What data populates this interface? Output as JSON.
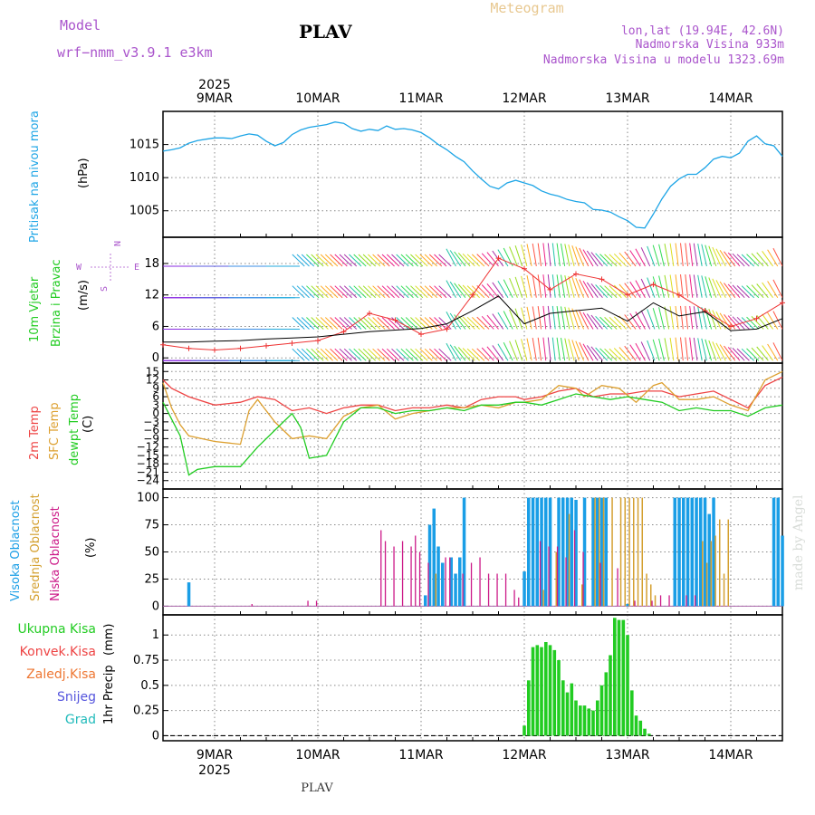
{
  "header": {
    "model_label": "Model",
    "model_name": "wrf−nmm_v3.9.1  e3km",
    "station": "PLAV",
    "chart_type": "Meteogram",
    "lonlat": "lon,lat (19.94E, 42.6N)",
    "elevation": "Nadmorska Visina 933m",
    "model_elevation": "Nadmorska Visina u modelu 1323.69m",
    "footer_station": "PLAV",
    "watermark": "made by Angel"
  },
  "colors": {
    "pressure": "#1ea5e6",
    "temp2m": "#ee4444",
    "sfc_temp": "#dda030",
    "dewpoint": "#22cc22",
    "cloud_high": "#1a9ee6",
    "cloud_mid": "#d4a030",
    "cloud_low": "#cc1a88",
    "precip_total": "#22cc22",
    "purple_text": "#aa55cc",
    "gust": "#ee3333",
    "avg_wind": "#000000"
  },
  "chart_data": [
    {
      "type": "line",
      "panel": "pressure",
      "title": "Pritisak na nivou mora",
      "ylabel": "(hPa)",
      "ylim": [
        1001,
        1020
      ],
      "yticks": [
        1005,
        1010,
        1015
      ],
      "x_ticks": [
        {
          "label": "9MAR",
          "hour": 24
        },
        {
          "label": "10MAR",
          "hour": 48
        },
        {
          "label": "11MAR",
          "hour": 72
        },
        {
          "label": "12MAR",
          "hour": 96
        },
        {
          "label": "13MAR",
          "hour": 120
        },
        {
          "label": "14MAR",
          "hour": 144
        }
      ],
      "year_label": "2025",
      "xlim": [
        12,
        156
      ],
      "series": [
        {
          "name": "Pritisak",
          "x": [
            12,
            14,
            16,
            18,
            20,
            22,
            24,
            26,
            28,
            30,
            32,
            34,
            36,
            38,
            40,
            42,
            44,
            46,
            48,
            50,
            52,
            54,
            56,
            58,
            60,
            62,
            64,
            66,
            68,
            70,
            72,
            74,
            76,
            78,
            80,
            82,
            84,
            86,
            88,
            90,
            92,
            94,
            96,
            98,
            100,
            102,
            104,
            106,
            108,
            110,
            112,
            114,
            116,
            118,
            120,
            122,
            124,
            126,
            128,
            130,
            132,
            134,
            136,
            138,
            140,
            142,
            144,
            146,
            148,
            150,
            152,
            154,
            156
          ],
          "values": [
            1014,
            1014.2,
            1014.5,
            1015.2,
            1015.6,
            1015.8,
            1016,
            1016,
            1015.9,
            1016.3,
            1016.6,
            1016.4,
            1015.5,
            1014.8,
            1015.3,
            1016.5,
            1017.2,
            1017.6,
            1017.8,
            1018,
            1018.4,
            1018.2,
            1017.4,
            1017,
            1017.3,
            1017.1,
            1017.8,
            1017.3,
            1017.4,
            1017.2,
            1016.8,
            1016,
            1015,
            1014.2,
            1013.2,
            1012.4,
            1011,
            1009.8,
            1008.7,
            1008.3,
            1009.2,
            1009.6,
            1009.2,
            1008.8,
            1008,
            1007.5,
            1007.2,
            1006.7,
            1006.4,
            1006.2,
            1005.2,
            1005.1,
            1004.8,
            1004.1,
            1003.5,
            1002.5,
            1002.4,
            1004.5,
            1006.8,
            1008.7,
            1009.8,
            1010.5,
            1010.5,
            1011.5,
            1012.8,
            1013.2,
            1013,
            1013.7,
            1015.5,
            1016.3,
            1015.1,
            1014.8,
            1013.2
          ]
        }
      ]
    },
    {
      "type": "line",
      "panel": "wind",
      "title": "10m Vjetar",
      "subtitle": "Brzina i Pravac",
      "ylabel": "(m/s)",
      "ylim": [
        -1,
        23
      ],
      "yticks": [
        0,
        6,
        12,
        18
      ],
      "compass": {
        "n": "N",
        "e": "E",
        "s": "S",
        "w": "W"
      },
      "series": [
        {
          "name": "Srednja brzina",
          "x": [
            12,
            18,
            24,
            30,
            36,
            42,
            48,
            54,
            60,
            66,
            72,
            78,
            84,
            90,
            96,
            102,
            108,
            114,
            120,
            126,
            132,
            138,
            144,
            150,
            156
          ],
          "values": [
            3,
            3,
            3.2,
            3.3,
            3.6,
            3.8,
            4,
            4.5,
            5,
            5.3,
            5.6,
            6.5,
            9,
            11.8,
            6.5,
            8.5,
            9,
            9.5,
            7,
            10.5,
            8,
            8.8,
            5.2,
            5.5,
            7.5
          ]
        },
        {
          "name": "Udar",
          "x": [
            12,
            18,
            24,
            30,
            36,
            42,
            48,
            54,
            60,
            66,
            72,
            78,
            84,
            90,
            96,
            102,
            108,
            114,
            120,
            126,
            132,
            138,
            144,
            150,
            156
          ],
          "values": [
            2.5,
            1.8,
            1.5,
            1.8,
            2.3,
            2.8,
            3.3,
            5,
            8.5,
            7.2,
            4.5,
            5.5,
            12,
            19,
            17,
            13,
            16,
            15,
            12,
            14,
            12,
            9,
            6,
            7.5,
            10.5
          ]
        }
      ],
      "barb_rows": [
        0,
        6,
        12,
        18
      ]
    },
    {
      "type": "line",
      "panel": "temperature",
      "title": "2m Temp",
      "subtitle": "SFC Temp",
      "subtitle2": "dewpt Temp",
      "ylabel": "(C)",
      "ylim": [
        -27,
        18
      ],
      "yticks": [
        15,
        12,
        9,
        6,
        3,
        0,
        -3,
        -6,
        -9,
        -12,
        -15,
        -18,
        -21,
        -24
      ],
      "series": [
        {
          "name": "2m Temp",
          "x": [
            12,
            14,
            18,
            24,
            30,
            34,
            38,
            42,
            46,
            50,
            54,
            58,
            62,
            66,
            70,
            74,
            78,
            82,
            86,
            90,
            94,
            96,
            100,
            104,
            108,
            112,
            116,
            120,
            124,
            128,
            132,
            136,
            140,
            144,
            148,
            152,
            156
          ],
          "values": [
            12,
            9,
            6,
            3,
            4,
            6,
            5,
            1,
            2,
            0,
            2,
            3,
            3,
            1,
            2,
            2,
            3,
            2,
            5,
            6,
            6,
            5,
            6,
            8,
            9,
            6,
            7,
            7,
            8,
            8,
            6,
            7,
            8,
            5,
            2,
            10,
            13
          ]
        },
        {
          "name": "SFC Temp",
          "x": [
            12,
            14,
            16,
            18,
            24,
            30,
            32,
            34,
            38,
            42,
            46,
            50,
            54,
            58,
            62,
            66,
            70,
            74,
            78,
            82,
            86,
            90,
            94,
            96,
            100,
            104,
            108,
            110,
            114,
            118,
            122,
            126,
            128,
            132,
            136,
            140,
            144,
            148,
            152,
            156
          ],
          "values": [
            11,
            2,
            -4,
            -8,
            -10,
            -11,
            1,
            5,
            -3,
            -9,
            -8,
            -9,
            -1,
            2,
            3,
            -2,
            0,
            1,
            2,
            2,
            3,
            2,
            4,
            4,
            5,
            10,
            9,
            6,
            10,
            9,
            4,
            10,
            11,
            5,
            5,
            6,
            3,
            1,
            12,
            15
          ]
        },
        {
          "name": "dewpt Temp",
          "x": [
            12,
            14,
            16,
            18,
            20,
            24,
            30,
            34,
            38,
            42,
            44,
            46,
            50,
            54,
            58,
            62,
            66,
            70,
            74,
            78,
            82,
            86,
            90,
            94,
            96,
            100,
            104,
            108,
            112,
            116,
            120,
            124,
            128,
            132,
            136,
            140,
            144,
            148,
            152,
            156
          ],
          "values": [
            4,
            -2,
            -8,
            -22,
            -20,
            -19,
            -19,
            -12,
            -6,
            0,
            -5,
            -16,
            -15,
            -3,
            2,
            2,
            0,
            1,
            1,
            2,
            1,
            3,
            3,
            4,
            4,
            3,
            5,
            7,
            6,
            5,
            6,
            5,
            4,
            1,
            2,
            1,
            1,
            -1,
            2,
            3
          ]
        }
      ]
    },
    {
      "type": "bar",
      "panel": "clouds",
      "title": "Visoka Oblacnost",
      "subtitle": "Srednja Oblacnost",
      "subtitle2": "Niska Oblacnost",
      "ylabel": "(%)",
      "ylim": [
        -8,
        108
      ],
      "yticks": [
        0,
        25,
        50,
        75,
        100
      ],
      "series": [
        {
          "name": "Visoka",
          "x": [
            18,
            73,
            74,
            75,
            76,
            77,
            79,
            80,
            81,
            82,
            96,
            97,
            98,
            99,
            100,
            101,
            102,
            104,
            105,
            106,
            107,
            108,
            110,
            112,
            113,
            114,
            115,
            120,
            131,
            132,
            133,
            134,
            135,
            136,
            137,
            138,
            139,
            140,
            154,
            155,
            156
          ],
          "values": [
            22,
            10,
            75,
            90,
            55,
            40,
            45,
            30,
            45,
            100,
            32,
            100,
            100,
            100,
            100,
            100,
            100,
            100,
            100,
            100,
            100,
            98,
            100,
            100,
            100,
            100,
            100,
            2,
            100,
            100,
            100,
            100,
            100,
            100,
            100,
            100,
            85,
            100,
            100,
            100,
            65
          ]
        },
        {
          "name": "Srednja",
          "x": [
            75,
            100,
            103,
            106,
            109,
            112,
            113,
            114,
            116,
            118,
            119,
            120,
            121,
            122,
            123,
            124,
            125,
            126,
            137,
            138,
            139,
            140,
            141,
            142,
            143
          ],
          "values": [
            30,
            15,
            50,
            85,
            20,
            100,
            100,
            100,
            100,
            100,
            100,
            100,
            100,
            100,
            100,
            30,
            20,
            10,
            60,
            40,
            60,
            65,
            80,
            30,
            80
          ]
        },
        {
          "name": "Niska",
          "x": [
            33,
            46,
            48,
            63,
            64,
            66,
            68,
            70,
            71,
            72,
            74,
            78,
            79,
            82,
            84,
            86,
            88,
            90,
            92,
            94,
            95,
            100,
            102,
            104,
            106,
            108,
            110,
            114,
            118,
            122,
            126,
            128,
            130,
            134,
            136
          ],
          "values": [
            2,
            5,
            5,
            70,
            60,
            55,
            60,
            55,
            65,
            50,
            40,
            45,
            45,
            30,
            40,
            45,
            30,
            30,
            30,
            15,
            8,
            60,
            55,
            55,
            45,
            70,
            50,
            40,
            35,
            5,
            5,
            10,
            10,
            10,
            10
          ]
        }
      ]
    },
    {
      "type": "bar",
      "panel": "precip",
      "title": "1hr Precip",
      "ylabel": "(mm)",
      "ylim": [
        -0.05,
        1.2
      ],
      "yticks": [
        0,
        0.25,
        0.5,
        0.75,
        1
      ],
      "legend": [
        "Ukupna Kisa",
        "Konvek.Kisa",
        "Zaledj.Kisa",
        "Snijeg",
        "Grad"
      ],
      "series": [
        {
          "name": "Ukupna Kisa",
          "x": [
            96,
            97,
            98,
            99,
            100,
            101,
            102,
            103,
            104,
            105,
            106,
            107,
            108,
            109,
            110,
            111,
            112,
            113,
            114,
            115,
            116,
            117,
            118,
            119,
            120,
            121,
            122,
            123,
            124,
            125
          ],
          "values": [
            0.1,
            0.55,
            0.88,
            0.9,
            0.88,
            0.93,
            0.9,
            0.85,
            0.75,
            0.55,
            0.43,
            0.52,
            0.35,
            0.3,
            0.3,
            0.27,
            0.25,
            0.35,
            0.5,
            0.63,
            0.8,
            1.17,
            1.15,
            1.15,
            1.0,
            0.45,
            0.2,
            0.15,
            0.07,
            0.02
          ]
        }
      ]
    }
  ]
}
